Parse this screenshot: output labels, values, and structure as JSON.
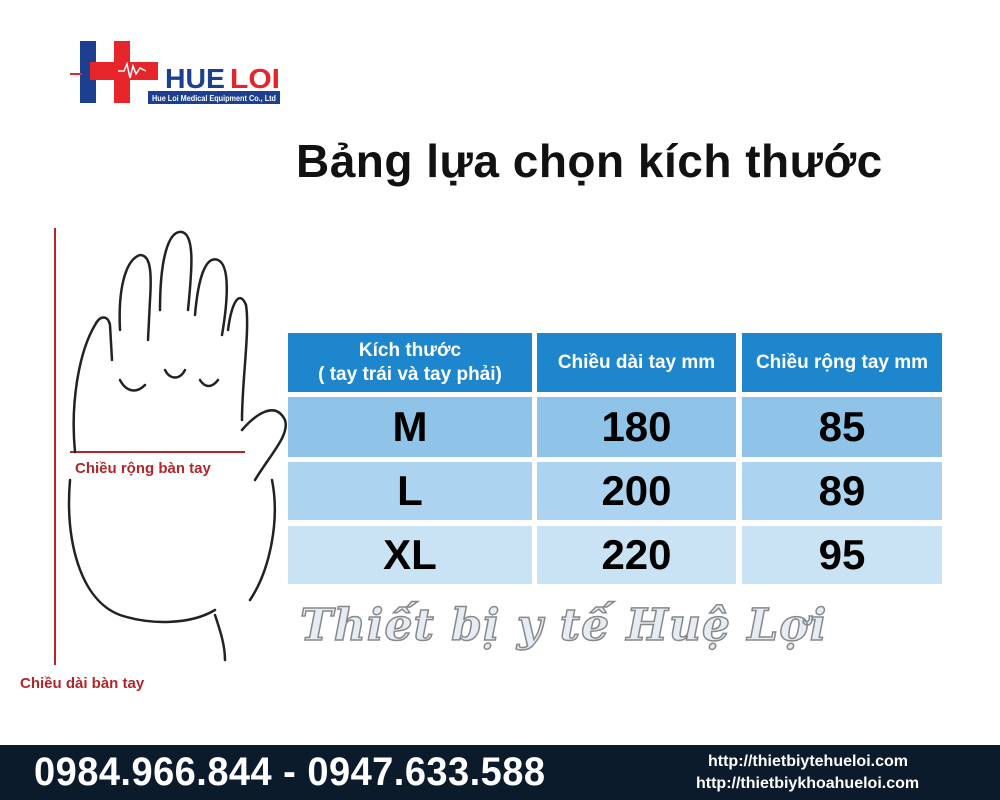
{
  "logo": {
    "brand_part1": "HUE",
    "brand_part2": "LOI",
    "subtitle": "Hue Loi Medical Equipment Co., Ltd",
    "colors": {
      "blue": "#1d3f8f",
      "red": "#e5252a"
    }
  },
  "title": "Bảng lựa chọn kích thước",
  "diagram": {
    "width_label": "Chiều rộng bàn tay",
    "length_label": "Chiều dài bàn tay",
    "measure_color": "#b2262a"
  },
  "table": {
    "headers": [
      "Kích thước\n( tay trái và tay phải)",
      "Chiều dài tay mm",
      "Chiều rộng tay mm"
    ],
    "header_line1": "Kích thước",
    "header_line2": "( tay trái và tay phải)",
    "rows": [
      {
        "size": "M",
        "length": "180",
        "width": "85"
      },
      {
        "size": "L",
        "length": "200",
        "width": "89"
      },
      {
        "size": "XL",
        "length": "220",
        "width": "95"
      }
    ],
    "header_color": "#1e86cc",
    "row_colors": [
      "#8fc3e8",
      "#acd3ef",
      "#c9e2f4"
    ]
  },
  "watermark": "Thiết bị y tế Huệ Lợi",
  "footer": {
    "phones": "0984.966.844 - 0947.633.588",
    "urls": [
      "http://thietbiytehueloi.com",
      "http://thietbiykhoahueloi.com"
    ]
  }
}
